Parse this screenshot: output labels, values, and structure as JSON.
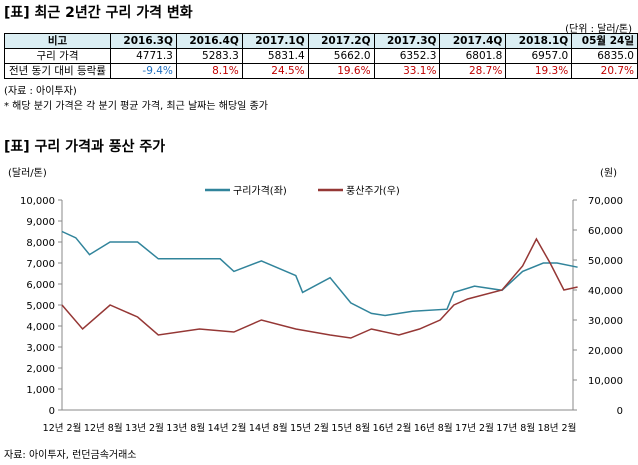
{
  "table": {
    "title": "[표] 최근 2년간 구리 가격 변화",
    "unit": "(단위 : 달러/톤)",
    "header": [
      "비고",
      "2016.3Q",
      "2016.4Q",
      "2017.1Q",
      "2017.2Q",
      "2017.3Q",
      "2017.4Q",
      "2018.1Q",
      "05월 24일"
    ],
    "rows": [
      {
        "label": "구리 가격",
        "values": [
          "4771.3",
          "5283.3",
          "5831.4",
          "5662.0",
          "6352.3",
          "6801.8",
          "6957.0",
          "6835.0"
        ]
      },
      {
        "label": "전년 동기 대비 등락률",
        "values": [
          "-9.4%",
          "8.1%",
          "24.5%",
          "19.6%",
          "33.1%",
          "28.7%",
          "19.3%",
          "20.7%"
        ]
      }
    ],
    "source": "(자료 : 아이투자)",
    "note": "* 해당 분기 가격은 각 분기 평균 가격, 최근 날짜는 해당일 종가",
    "colors": {
      "negative": "#1f6fc0",
      "positive": "#c00000",
      "header_bg": "#dbeef3"
    }
  },
  "chart_data": {
    "type": "line",
    "title": "[표] 구리 가격과 풍산 주가",
    "ylabel_left": "(달러/톤)",
    "ylabel_right": "(원)",
    "ylim_left": [
      0,
      10000
    ],
    "ylim_right": [
      0,
      70000
    ],
    "yticks_left": [
      "0",
      "1,000",
      "2,000",
      "3,000",
      "4,000",
      "5,000",
      "6,000",
      "7,000",
      "8,000",
      "9,000",
      "10,000"
    ],
    "yticks_right": [
      "0",
      "10,000",
      "20,000",
      "30,000",
      "40,000",
      "50,000",
      "60,000",
      "70,000"
    ],
    "xticks": [
      "12년 2월",
      "12년 8월",
      "13년 2월",
      "13년 8월",
      "14년 2월",
      "14년 8월",
      "15년 2월",
      "15년 8월",
      "16년 2월",
      "16년 8월",
      "17년 2월",
      "17년 8월",
      "18년 2월"
    ],
    "legend": "top-center",
    "grid": false,
    "series": [
      {
        "name": "구리가격(좌)",
        "axis": "left",
        "color": "#31849b",
        "x": [
          "2012-02",
          "2012-04",
          "2012-06",
          "2012-09",
          "2013-01",
          "2013-04",
          "2013-08",
          "2014-01",
          "2014-03",
          "2014-07",
          "2014-12",
          "2015-01",
          "2015-05",
          "2015-08",
          "2015-11",
          "2016-01",
          "2016-05",
          "2016-10",
          "2016-11",
          "2017-02",
          "2017-06",
          "2017-09",
          "2017-12",
          "2018-02",
          "2018-05"
        ],
        "y": [
          8500,
          8200,
          7400,
          8000,
          8000,
          7200,
          7200,
          7200,
          6600,
          7100,
          6400,
          5600,
          6300,
          5100,
          4600,
          4500,
          4700,
          4800,
          5600,
          5900,
          5700,
          6600,
          7000,
          7000,
          6800
        ]
      },
      {
        "name": "풍산주가(우)",
        "axis": "right",
        "color": "#953735",
        "x": [
          "2012-02",
          "2012-05",
          "2012-09",
          "2013-01",
          "2013-04",
          "2013-10",
          "2014-03",
          "2014-07",
          "2014-12",
          "2015-05",
          "2015-08",
          "2015-11",
          "2016-03",
          "2016-06",
          "2016-09",
          "2016-11",
          "2017-01",
          "2017-06",
          "2017-09",
          "2017-11",
          "2018-01",
          "2018-03",
          "2018-05"
        ],
        "y": [
          35000,
          27000,
          35000,
          31000,
          25000,
          27000,
          26000,
          30000,
          27000,
          25000,
          24000,
          27000,
          25000,
          27000,
          30000,
          35000,
          37000,
          40000,
          48000,
          57000,
          49000,
          40000,
          41000
        ]
      }
    ],
    "source": "자료: 아이투자, 런던금속거래소"
  }
}
